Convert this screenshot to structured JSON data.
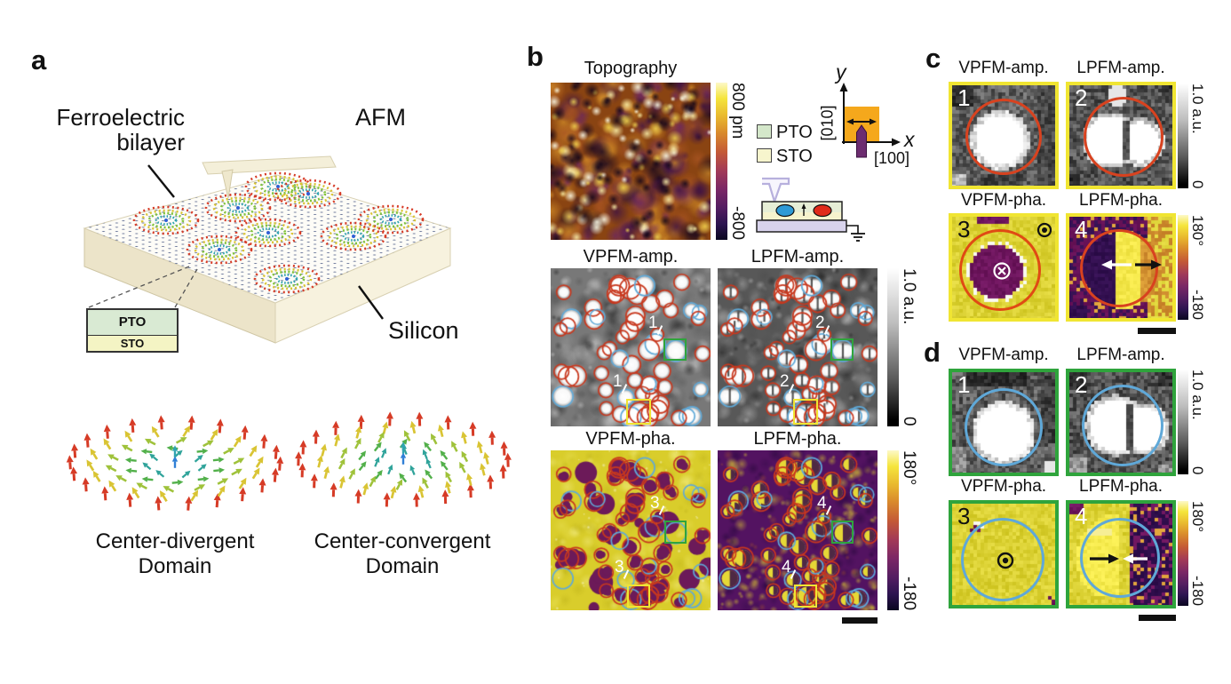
{
  "colors": {
    "red_circle": "#c8381e",
    "blue_circle": "#5fa9d8",
    "yellow_box": "#f0e532",
    "green_box": "#2fa43c",
    "pto_swatch": "#d4e7ca",
    "sto_swatch": "#f7f5cd",
    "scan_square": "#f5a81c",
    "tip_marker": "#6d2d70"
  },
  "panel_a": {
    "letter": "a",
    "bilayer_line1": "Ferroelectric",
    "bilayer_line2": "bilayer",
    "afm_label": "AFM",
    "silicon_label": "Silicon",
    "stack": {
      "top": "PTO",
      "bottom": "STO"
    },
    "left_domain": {
      "line1": "Center-divergent",
      "line2": "Domain"
    },
    "right_domain": {
      "line1": "Center-convergent",
      "line2": "Domain"
    }
  },
  "panel_b": {
    "letter": "b",
    "topography": {
      "title": "Topography",
      "cbar_max": "800 pm",
      "cbar_min": "-800"
    },
    "legend": {
      "pto": "PTO",
      "sto": "STO"
    },
    "axes": {
      "x": "x",
      "y": "y",
      "x_dir": "[100]",
      "y_dir": "[010]"
    },
    "maps": {
      "vpfm_amp": {
        "title": "VPFM-amp.",
        "num": "1"
      },
      "lpfm_amp": {
        "title": "LPFM-amp.",
        "num": "2"
      },
      "vpfm_pha": {
        "title": "VPFM-pha.",
        "num": "3"
      },
      "lpfm_pha": {
        "title": "LPFM-pha.",
        "num": "4"
      }
    },
    "amp_cbar": {
      "max": "1.0 a.u.",
      "min": "0"
    },
    "pha_cbar": {
      "max": "180°",
      "min": "-180"
    }
  },
  "panel_c": {
    "letter": "c",
    "titles": {
      "r1c1": "VPFM-amp.",
      "r1c2": "LPFM-amp.",
      "r2c1": "VPFM-pha.",
      "r2c2": "LPFM-pha."
    },
    "nums": {
      "t1": "1",
      "t2": "2",
      "t3": "3",
      "t4": "4"
    },
    "amp_cbar": {
      "max": "1.0 a.u.",
      "min": "0"
    },
    "pha_cbar": {
      "max": "180°",
      "min": "-180"
    }
  },
  "panel_d": {
    "letter": "d",
    "titles": {
      "r1c1": "VPFM-amp.",
      "r1c2": "LPFM-amp.",
      "r2c1": "VPFM-pha.",
      "r2c2": "LPFM-pha."
    },
    "nums": {
      "t1": "1",
      "t2": "2",
      "t3": "3",
      "t4": "4"
    },
    "amp_cbar": {
      "max": "1.0 a.u.",
      "min": "0"
    },
    "pha_cbar": {
      "max": "180°",
      "min": "-180"
    }
  }
}
